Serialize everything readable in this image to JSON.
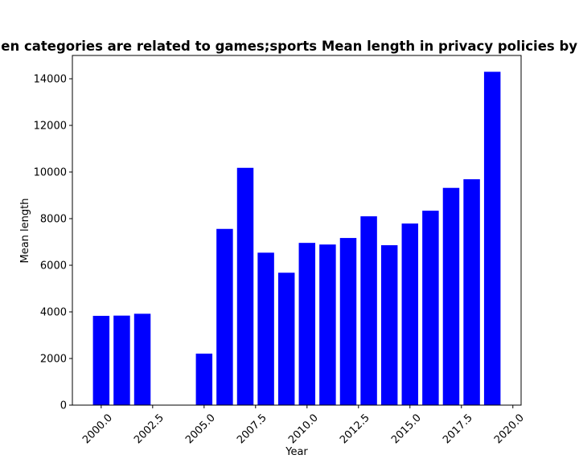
{
  "chart_data": {
    "type": "bar",
    "title": "When categories are related to games;sports Mean length in privacy policies by Year",
    "xlabel": "Year",
    "ylabel": "Mean length",
    "x": [
      2000,
      2001,
      2002,
      2005,
      2006,
      2007,
      2008,
      2009,
      2010,
      2011,
      2012,
      2013,
      2014,
      2015,
      2016,
      2017,
      2018,
      2019
    ],
    "values": [
      3830,
      3840,
      3920,
      2210,
      7560,
      10180,
      6540,
      5680,
      6960,
      6890,
      7170,
      8100,
      6860,
      7790,
      8340,
      9320,
      9690,
      14300
    ],
    "xlim": [
      1998.6,
      2020.4
    ],
    "ylim": [
      0,
      15000
    ],
    "xticks": [
      2000.0,
      2002.5,
      2005.0,
      2007.5,
      2010.0,
      2012.5,
      2015.0,
      2017.5,
      2020.0
    ],
    "xtick_labels": [
      "2000.0",
      "2002.5",
      "2005.0",
      "2007.5",
      "2010.0",
      "2012.5",
      "2015.0",
      "2017.5",
      "2020.0"
    ],
    "yticks": [
      0,
      2000,
      4000,
      6000,
      8000,
      10000,
      12000,
      14000
    ],
    "ytick_labels": [
      "0",
      "2000",
      "4000",
      "6000",
      "8000",
      "10000",
      "12000",
      "14000"
    ],
    "bar_color": "#0000ff",
    "grid": false,
    "legend": false
  }
}
